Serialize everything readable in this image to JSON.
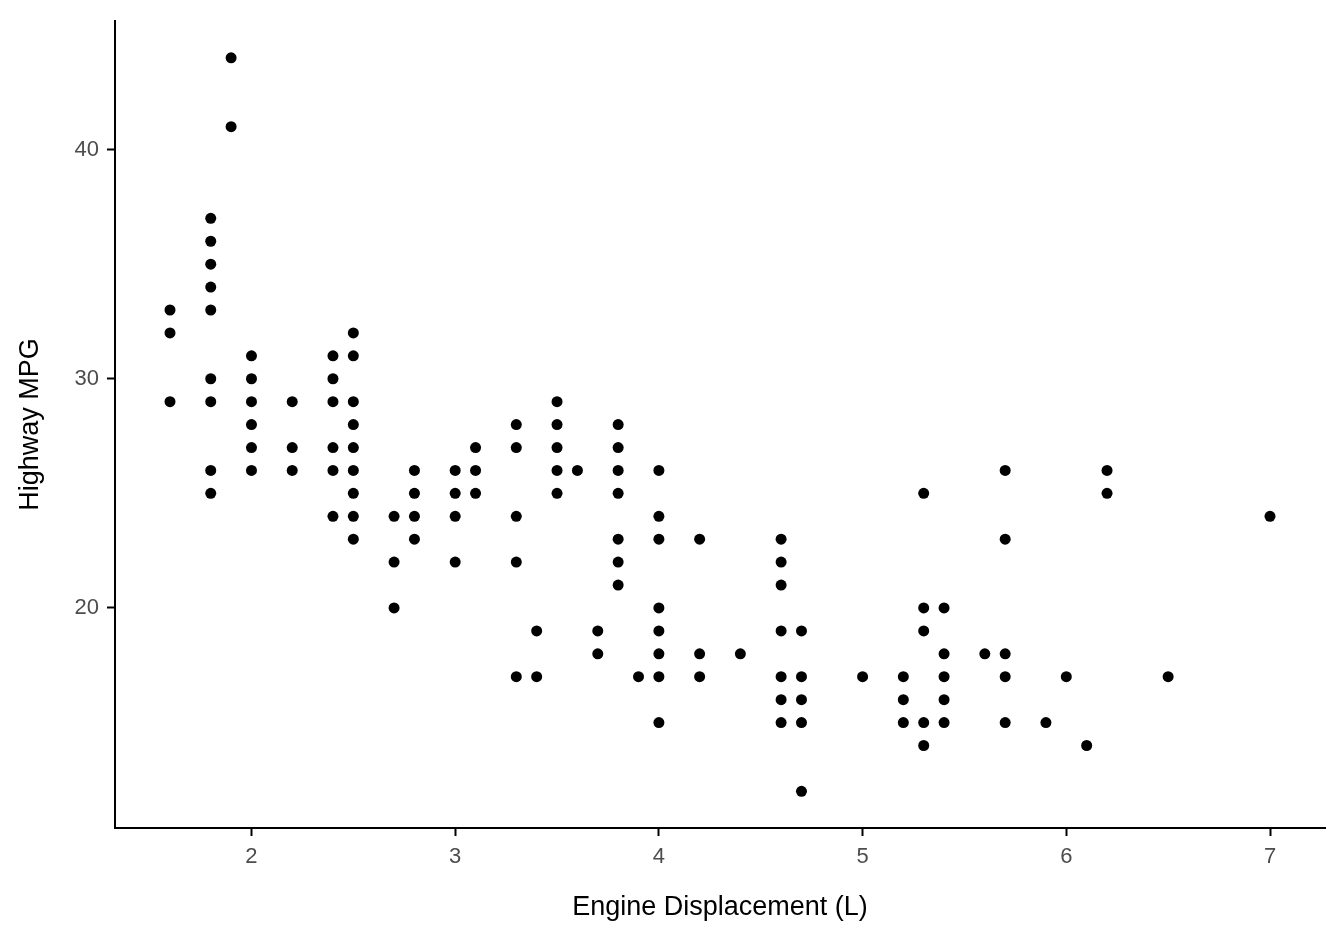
{
  "chart_data": {
    "type": "scatter",
    "xlabel": "Engine Displacement (L)",
    "ylabel": "Highway MPG",
    "color": "#000000",
    "marker": "circle",
    "grid": false,
    "legend": false,
    "xlim": [
      1.33,
      7.27
    ],
    "ylim": [
      10.4,
      45.6
    ],
    "xticks": [
      2,
      3,
      4,
      5,
      6,
      7
    ],
    "yticks": [
      20,
      30,
      40
    ],
    "x": [
      1.6,
      1.6,
      1.6,
      1.8,
      1.8,
      1.8,
      1.8,
      1.8,
      1.8,
      1.8,
      1.8,
      1.8,
      1.9,
      1.9,
      2,
      2,
      2,
      2,
      2,
      2,
      2.2,
      2.2,
      2.2,
      2.4,
      2.4,
      2.4,
      2.4,
      2.4,
      2.4,
      2.5,
      2.5,
      2.5,
      2.5,
      2.5,
      2.5,
      2.5,
      2.5,
      2.5,
      2.7,
      2.7,
      2.7,
      2.8,
      2.8,
      2.8,
      2.8,
      3,
      3,
      3,
      3,
      3.1,
      3.1,
      3.1,
      3.3,
      3.3,
      3.3,
      3.3,
      3.3,
      3.4,
      3.4,
      3.5,
      3.5,
      3.5,
      3.5,
      3.5,
      3.6,
      3.7,
      3.7,
      3.8,
      3.8,
      3.8,
      3.8,
      3.8,
      3.8,
      3.8,
      3.9,
      4,
      4,
      4,
      4,
      4,
      4,
      4,
      4,
      4.2,
      4.2,
      4.2,
      4.4,
      4.6,
      4.6,
      4.6,
      4.6,
      4.6,
      4.6,
      4.6,
      4.7,
      4.7,
      4.7,
      4.7,
      4.7,
      5,
      5.2,
      5.2,
      5.2,
      5.3,
      5.3,
      5.3,
      5.3,
      5.3,
      5.4,
      5.4,
      5.4,
      5.4,
      5.4,
      5.6,
      5.7,
      5.7,
      5.7,
      5.7,
      5.7,
      5.9,
      6,
      6.1,
      6.2,
      6.2,
      6.5,
      7
    ],
    "values": [
      33,
      32,
      29,
      37,
      36,
      35,
      34,
      33,
      30,
      29,
      26,
      25,
      44,
      41,
      31,
      30,
      29,
      28,
      27,
      26,
      29,
      27,
      26,
      31,
      30,
      29,
      27,
      26,
      24,
      32,
      31,
      29,
      28,
      27,
      26,
      25,
      24,
      23,
      24,
      22,
      20,
      26,
      25,
      24,
      23,
      26,
      25,
      24,
      22,
      27,
      26,
      25,
      28,
      27,
      24,
      22,
      17,
      19,
      17,
      29,
      28,
      27,
      26,
      25,
      26,
      19,
      18,
      28,
      27,
      26,
      25,
      23,
      22,
      21,
      17,
      26,
      24,
      23,
      20,
      19,
      18,
      17,
      15,
      23,
      18,
      17,
      18,
      23,
      22,
      21,
      19,
      17,
      16,
      15,
      19,
      17,
      16,
      15,
      12,
      17,
      17,
      16,
      15,
      25,
      20,
      19,
      15,
      14,
      20,
      18,
      17,
      16,
      15,
      18,
      26,
      23,
      18,
      17,
      15,
      15,
      17,
      14,
      26,
      25,
      17,
      24
    ]
  }
}
